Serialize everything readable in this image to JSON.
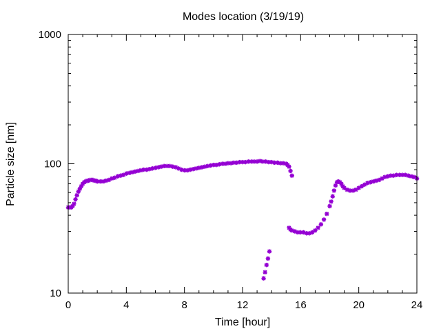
{
  "chart_data": {
    "type": "scatter",
    "title": "Modes location (3/19/19)",
    "xlabel": "Time [hour]",
    "ylabel": "Particle size [nm]",
    "xlim": [
      0,
      24
    ],
    "ylim": [
      10,
      1000
    ],
    "yscale": "log",
    "xticks": [
      0,
      4,
      8,
      12,
      16,
      20,
      24
    ],
    "xtick_labels": [
      "0",
      "4",
      "8",
      "12",
      "16",
      "20",
      "24"
    ],
    "yticks": [
      10,
      100,
      1000
    ],
    "ytick_labels": [
      "10",
      "100",
      "1000"
    ],
    "grid": false,
    "legend": false,
    "marker_color": "#9400d3",
    "series": [
      {
        "x": [
          0.0,
          0.1,
          0.2,
          0.3,
          0.4,
          0.5,
          0.6,
          0.7,
          0.8,
          0.9,
          1.0,
          1.1,
          1.2,
          1.3,
          1.4,
          1.5,
          1.6,
          1.7,
          1.8,
          1.9,
          2.0,
          2.2,
          2.4,
          2.6,
          2.8,
          3.0,
          3.2,
          3.4,
          3.6,
          3.8,
          4.0,
          4.2,
          4.4,
          4.6,
          4.8,
          5.0,
          5.2,
          5.4,
          5.6,
          5.8,
          6.0,
          6.2,
          6.4,
          6.6,
          6.8,
          7.0,
          7.2,
          7.4,
          7.6,
          7.8,
          8.0,
          8.2,
          8.4,
          8.6,
          8.8,
          9.0,
          9.2,
          9.4,
          9.6,
          9.8,
          10.0,
          10.2,
          10.4,
          10.6,
          10.8,
          11.0,
          11.2,
          11.4,
          11.6,
          11.8,
          12.0,
          12.2,
          12.4,
          12.6,
          12.8,
          13.0,
          13.2,
          13.4,
          13.6,
          13.8,
          14.0,
          14.2,
          14.4,
          14.6,
          14.8,
          15.0,
          15.1,
          15.2,
          15.3,
          15.4
        ],
        "y": [
          46,
          46,
          46,
          47,
          49,
          53,
          57,
          61,
          64,
          67,
          70,
          72,
          73,
          74,
          74,
          75,
          75,
          75,
          74,
          74,
          73,
          73,
          73,
          74,
          75,
          77,
          78,
          80,
          81,
          82,
          84,
          85,
          86,
          87,
          88,
          89,
          90,
          90,
          91,
          92,
          93,
          94,
          95,
          96,
          96,
          96,
          95,
          94,
          92,
          90,
          89,
          89,
          90,
          91,
          92,
          93,
          94,
          95,
          96,
          97,
          98,
          98,
          99,
          100,
          100,
          101,
          101,
          102,
          102,
          103,
          103,
          103,
          104,
          104,
          104,
          104,
          105,
          104,
          104,
          103,
          103,
          102,
          102,
          101,
          101,
          100,
          98,
          95,
          88,
          81
        ]
      },
      {
        "x": [
          13.45,
          13.55,
          13.65,
          13.75,
          13.85
        ],
        "y": [
          13,
          14.5,
          16.5,
          18.5,
          21
        ]
      },
      {
        "x": [
          15.2,
          15.3,
          15.4,
          15.6,
          15.8,
          16.0,
          16.2,
          16.4,
          16.6,
          16.8,
          17.0,
          17.2,
          17.4,
          17.6,
          17.8,
          18.0,
          18.1,
          18.2,
          18.3,
          18.4,
          18.5,
          18.6,
          18.7,
          18.8,
          18.9,
          19.0,
          19.2,
          19.4,
          19.6,
          19.8,
          20.0,
          20.2,
          20.4,
          20.6,
          20.8,
          21.0,
          21.2,
          21.4,
          21.6,
          21.8,
          22.0,
          22.2,
          22.4,
          22.6,
          22.8,
          23.0,
          23.2,
          23.4,
          23.6,
          23.8,
          24.0
        ],
        "y": [
          32,
          31,
          30.5,
          30,
          29.5,
          29.5,
          29.5,
          29,
          29,
          29.5,
          30.5,
          32,
          34,
          37,
          41,
          47,
          51,
          56,
          62,
          68,
          72,
          73,
          72,
          70,
          67,
          65,
          63,
          62,
          62,
          63,
          65,
          67,
          69,
          71,
          72,
          73,
          74,
          75,
          77,
          79,
          80,
          81,
          81,
          82,
          82,
          82,
          82,
          81,
          80,
          79,
          77
        ]
      }
    ]
  }
}
